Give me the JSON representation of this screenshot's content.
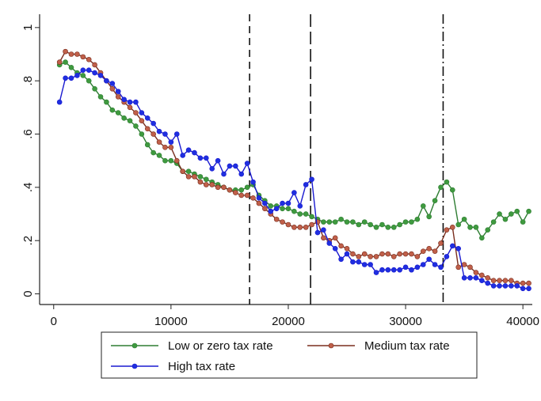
{
  "chart_data": {
    "type": "line",
    "x": [
      500,
      1000,
      1500,
      2000,
      2500,
      3000,
      3500,
      4000,
      4500,
      5000,
      5500,
      6000,
      6500,
      7000,
      7500,
      8000,
      8500,
      9000,
      9500,
      10000,
      10500,
      11000,
      11500,
      12000,
      12500,
      13000,
      13500,
      14000,
      14500,
      15000,
      15500,
      16000,
      16500,
      17000,
      17500,
      18000,
      18500,
      19000,
      19500,
      20000,
      20500,
      21000,
      21500,
      22000,
      22500,
      23000,
      23500,
      24000,
      24500,
      25000,
      25500,
      26000,
      26500,
      27000,
      27500,
      28000,
      28500,
      29000,
      29500,
      30000,
      30500,
      31000,
      31500,
      32000,
      32500,
      33000,
      33500,
      34000,
      34500,
      35000,
      35500,
      36000,
      36500,
      37000,
      37500,
      38000,
      38500,
      39000,
      39500,
      40000,
      40500
    ],
    "series": [
      {
        "name": "Low or zero tax rate",
        "color": "#2e7d32",
        "marker_color": "#3f9a3f",
        "values": [
          0.86,
          0.87,
          0.85,
          0.83,
          0.82,
          0.8,
          0.77,
          0.74,
          0.72,
          0.69,
          0.68,
          0.66,
          0.65,
          0.63,
          0.6,
          0.56,
          0.53,
          0.52,
          0.5,
          0.5,
          0.49,
          0.46,
          0.46,
          0.45,
          0.44,
          0.43,
          0.42,
          0.41,
          0.4,
          0.39,
          0.39,
          0.39,
          0.4,
          0.41,
          0.37,
          0.35,
          0.33,
          0.33,
          0.32,
          0.32,
          0.31,
          0.3,
          0.3,
          0.29,
          0.28,
          0.27,
          0.27,
          0.27,
          0.28,
          0.27,
          0.27,
          0.26,
          0.27,
          0.26,
          0.25,
          0.26,
          0.25,
          0.25,
          0.26,
          0.27,
          0.27,
          0.28,
          0.33,
          0.29,
          0.35,
          0.4,
          0.42,
          0.39,
          0.26,
          0.28,
          0.25,
          0.25,
          0.21,
          0.24,
          0.27,
          0.3,
          0.28,
          0.3,
          0.31,
          0.27,
          0.31
        ]
      },
      {
        "name": "Medium tax rate",
        "color": "#7a2e1e",
        "marker_color": "#c0604a",
        "values": [
          0.87,
          0.91,
          0.9,
          0.9,
          0.89,
          0.88,
          0.86,
          0.83,
          0.8,
          0.77,
          0.74,
          0.72,
          0.7,
          0.68,
          0.65,
          0.62,
          0.6,
          0.57,
          0.55,
          0.55,
          0.5,
          0.46,
          0.44,
          0.44,
          0.42,
          0.41,
          0.41,
          0.4,
          0.4,
          0.39,
          0.38,
          0.37,
          0.37,
          0.36,
          0.34,
          0.32,
          0.3,
          0.28,
          0.27,
          0.26,
          0.25,
          0.25,
          0.25,
          0.26,
          0.27,
          0.21,
          0.2,
          0.21,
          0.18,
          0.17,
          0.15,
          0.14,
          0.15,
          0.14,
          0.14,
          0.15,
          0.15,
          0.14,
          0.15,
          0.15,
          0.15,
          0.14,
          0.16,
          0.17,
          0.16,
          0.19,
          0.24,
          0.25,
          0.1,
          0.11,
          0.1,
          0.08,
          0.07,
          0.06,
          0.05,
          0.05,
          0.05,
          0.05,
          0.04,
          0.04,
          0.04
        ]
      },
      {
        "name": "High tax rate",
        "color": "#1a1ad0",
        "marker_color": "#1f2fe0",
        "values": [
          0.72,
          0.81,
          0.81,
          0.82,
          0.84,
          0.84,
          0.83,
          0.82,
          0.8,
          0.79,
          0.76,
          0.73,
          0.72,
          0.72,
          0.68,
          0.66,
          0.64,
          0.61,
          0.6,
          0.57,
          0.6,
          0.52,
          0.54,
          0.53,
          0.51,
          0.51,
          0.47,
          0.5,
          0.45,
          0.48,
          0.48,
          0.45,
          0.49,
          0.42,
          0.36,
          0.34,
          0.31,
          0.32,
          0.34,
          0.34,
          0.38,
          0.33,
          0.41,
          0.43,
          0.23,
          0.24,
          0.19,
          0.17,
          0.13,
          0.15,
          0.12,
          0.12,
          0.11,
          0.11,
          0.08,
          0.09,
          0.09,
          0.09,
          0.09,
          0.1,
          0.09,
          0.1,
          0.11,
          0.13,
          0.11,
          0.1,
          0.14,
          0.18,
          0.17,
          0.06,
          0.06,
          0.06,
          0.05,
          0.04,
          0.03,
          0.03,
          0.03,
          0.03,
          0.03,
          0.02,
          0.02
        ]
      }
    ],
    "vlines": [
      {
        "x": 16700,
        "style": "dashed"
      },
      {
        "x": 21900,
        "style": "longdash"
      },
      {
        "x": 33200,
        "style": "dashdot"
      }
    ],
    "xlim": [
      -1200,
      40800
    ],
    "ylim": [
      -0.04,
      1.05
    ],
    "xticks": [
      0,
      10000,
      20000,
      30000,
      40000
    ],
    "yticks": [
      0,
      {
        "value": 0.2,
        "label": ".2"
      },
      {
        "value": 0.4,
        "label": ".4"
      },
      {
        "value": 0.6,
        "label": ".6"
      },
      {
        "value": 0.8,
        "label": ".8"
      },
      1
    ],
    "grid": false
  }
}
